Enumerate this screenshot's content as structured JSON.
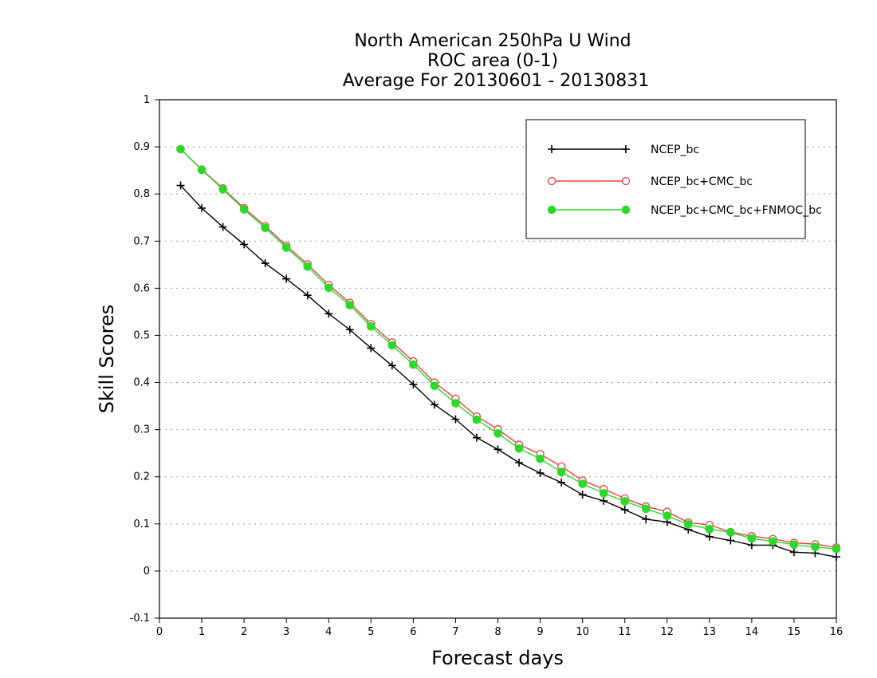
{
  "chart_data": {
    "type": "line",
    "title_lines": [
      "North American 250hPa U Wind",
      "ROC area (0-1)",
      "Average For 20130601 - 20130831"
    ],
    "xlabel": "Forecast days",
    "ylabel": "Skill Scores",
    "xlim": [
      0,
      16
    ],
    "ylim": [
      -0.1,
      1
    ],
    "xticks": [
      0,
      1,
      2,
      3,
      4,
      5,
      6,
      7,
      8,
      9,
      10,
      11,
      12,
      13,
      14,
      15,
      16
    ],
    "yticks": [
      -0.1,
      0,
      0.1,
      0.2,
      0.3,
      0.4,
      0.5,
      0.6,
      0.7,
      0.8,
      0.9,
      1
    ],
    "ytick_labels": [
      "-0.1",
      "0",
      "0.1",
      "0.2",
      "0.3",
      "0.4",
      "0.5",
      "0.6",
      "0.7",
      "0.8",
      "0.9",
      "1"
    ],
    "grid": "horizontal dotted",
    "legend_position": "top-right",
    "x": [
      0.5,
      1,
      1.5,
      2,
      2.5,
      3,
      3.5,
      4,
      4.5,
      5,
      5.5,
      6,
      6.5,
      7,
      7.5,
      8,
      8.5,
      9,
      9.5,
      10,
      10.5,
      11,
      11.5,
      12,
      12.5,
      13,
      13.5,
      14,
      14.5,
      15,
      15.5,
      16
    ],
    "series": [
      {
        "name": "NCEP_bc",
        "color": "#000000",
        "marker": "plus",
        "values": [
          0.818,
          0.77,
          0.73,
          0.693,
          0.653,
          0.62,
          0.585,
          0.546,
          0.512,
          0.473,
          0.436,
          0.396,
          0.353,
          0.322,
          0.283,
          0.258,
          0.23,
          0.208,
          0.188,
          0.162,
          0.149,
          0.13,
          0.11,
          0.104,
          0.088,
          0.073,
          0.065,
          0.055,
          0.055,
          0.04,
          0.038,
          0.03
        ]
      },
      {
        "name": "NCEP_bc+CMC_bc",
        "color": "#e8423f",
        "marker": "open-circle",
        "values": [
          0.895,
          0.852,
          0.812,
          0.77,
          0.732,
          0.69,
          0.651,
          0.607,
          0.569,
          0.524,
          0.485,
          0.445,
          0.4,
          0.366,
          0.328,
          0.301,
          0.268,
          0.248,
          0.222,
          0.192,
          0.174,
          0.154,
          0.137,
          0.126,
          0.103,
          0.098,
          0.083,
          0.074,
          0.068,
          0.06,
          0.057,
          0.05
        ]
      },
      {
        "name": "NCEP_bc+CMC_bc+FNMOC_bc",
        "color": "#2bd92b",
        "marker": "filled-circle",
        "values": [
          0.895,
          0.851,
          0.81,
          0.767,
          0.728,
          0.686,
          0.646,
          0.601,
          0.564,
          0.519,
          0.479,
          0.438,
          0.393,
          0.356,
          0.321,
          0.292,
          0.26,
          0.238,
          0.21,
          0.185,
          0.165,
          0.148,
          0.132,
          0.117,
          0.099,
          0.089,
          0.082,
          0.069,
          0.063,
          0.056,
          0.051,
          0.047
        ]
      }
    ]
  }
}
